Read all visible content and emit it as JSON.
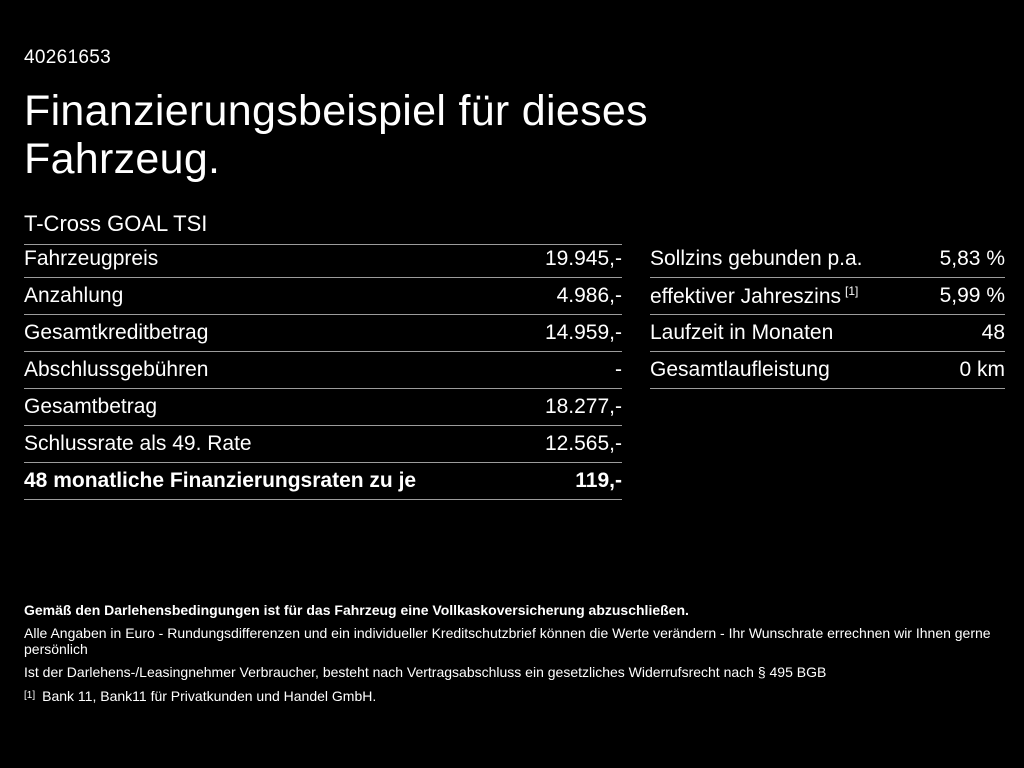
{
  "page": {
    "vehicle_id": "40261653",
    "title": "Finanzierungsbeispiel für dieses Fahrzeug.",
    "model": "T-Cross GOAL TSI"
  },
  "colors": {
    "background": "#000000",
    "text": "#ffffff",
    "divider": "#9c9c9c"
  },
  "left_table": {
    "rows": [
      {
        "label": "Fahrzeugpreis",
        "value": "19.945,-"
      },
      {
        "label": "Anzahlung",
        "value": "4.986,-"
      },
      {
        "label": "Gesamtkreditbetrag",
        "value": "14.959,-"
      },
      {
        "label": "Abschlussgebühren",
        "value": "-"
      },
      {
        "label": "Gesamtbetrag",
        "value": "18.277,-"
      },
      {
        "label": "Schlussrate als 49. Rate",
        "value": "12.565,-"
      },
      {
        "label": "48 monatliche Finanzierungsraten zu je",
        "value": "119,-"
      }
    ]
  },
  "right_table": {
    "rows": [
      {
        "label": "Sollzins gebunden p.a.",
        "sup": "",
        "value": "5,83 %"
      },
      {
        "label": "effektiver Jahreszins",
        "sup": "[1]",
        "value": "5,99 %"
      },
      {
        "label": "Laufzeit in Monaten",
        "sup": "",
        "value": "48"
      },
      {
        "label": "Gesamtlaufleistung",
        "sup": "",
        "value": "0 km"
      }
    ]
  },
  "footer": {
    "line1": "Gemäß den Darlehensbedingungen ist für das Fahrzeug eine Vollkaskoversicherung abzuschließen.",
    "line2": "Alle Angaben in Euro - Rundungsdifferenzen und ein individueller Kreditschutzbrief können die Werte verändern - Ihr Wunschrate errechnen wir Ihnen gerne persönlich",
    "line3": "Ist der Darlehens-/Leasingnehmer Verbraucher, besteht nach Vertragsabschluss ein gesetzliches Widerrufsrecht nach § 495 BGB",
    "footnote_marker": "[1]",
    "footnote_text": "Bank 11, Bank11 für Privatkunden und Handel GmbH."
  }
}
